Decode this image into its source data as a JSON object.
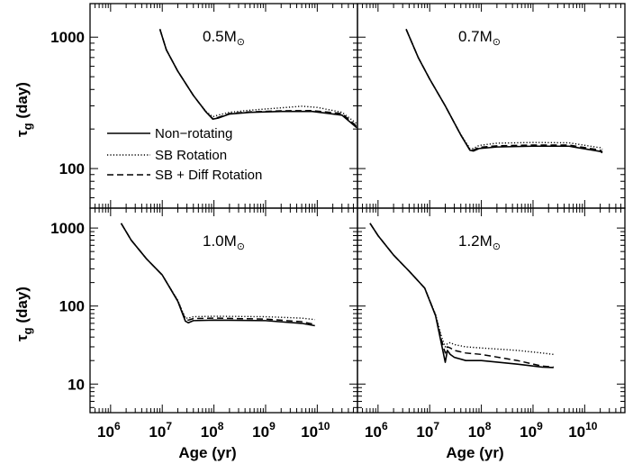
{
  "chart_data": {
    "type": "line",
    "xlabel": "Age (yr)",
    "ylabel_main": "τ",
    "ylabel_sub": "g",
    "ylabel_unit": " (day)",
    "x_scale": "log",
    "y_scale": "log",
    "x_tick_labels": [
      {
        "base": "10",
        "exp": "6",
        "value": 1000000
      },
      {
        "base": "10",
        "exp": "7",
        "value": 10000000
      },
      {
        "base": "10",
        "exp": "8",
        "value": 100000000
      },
      {
        "base": "10",
        "exp": "9",
        "value": 1000000000
      },
      {
        "base": "10",
        "exp": "10",
        "value": 10000000000
      }
    ],
    "legend": {
      "placement": "left, lower-middle of top-left panel",
      "entries": [
        {
          "label": "Non−rotating",
          "style": "solid"
        },
        {
          "label": "SB Rotation",
          "style": "dotted"
        },
        {
          "label": "SB + Diff Rotation",
          "style": "dashed"
        }
      ]
    },
    "panels": [
      {
        "label": "0.5M",
        "label_symbol": "⊙",
        "xlim": [
          400000,
          60000000000
        ],
        "ylim": [
          50,
          1800
        ],
        "y_ticks": [
          {
            "label": "1000",
            "value": 1000
          },
          {
            "label": "100",
            "value": 100
          }
        ],
        "series": [
          {
            "style": "solid",
            "x": [
              9000000,
              12000000,
              20000000,
              40000000,
              70000000,
              95000000,
              120000000,
              200000000,
              500000000,
              2000000000,
              8000000000,
              30000000000,
              58000000000
            ],
            "y": [
              1150,
              800,
              550,
              360,
              270,
              238,
              242,
              260,
              268,
              272,
              272,
              255,
              205
            ]
          },
          {
            "style": "dotted",
            "x": [
              9000000,
              12000000,
              20000000,
              40000000,
              70000000,
              95000000,
              120000000,
              200000000,
              500000000,
              2000000000,
              5000000000,
              10000000000,
              30000000000,
              58000000000
            ],
            "y": [
              1150,
              800,
              550,
              360,
              272,
              248,
              255,
              268,
              278,
              290,
              298,
              292,
              268,
              220
            ]
          },
          {
            "style": "dashed",
            "x": [
              9000000,
              12000000,
              20000000,
              40000000,
              70000000,
              95000000,
              120000000,
              200000000,
              500000000,
              2000000000,
              8000000000,
              30000000000,
              58000000000
            ],
            "y": [
              1150,
              800,
              550,
              360,
              270,
              240,
              245,
              262,
              270,
              275,
              276,
              262,
              210
            ]
          }
        ]
      },
      {
        "label": "0.7M",
        "label_symbol": "⊙",
        "xlim": [
          400000,
          60000000000
        ],
        "ylim": [
          50,
          1800
        ],
        "y_ticks": [],
        "series": [
          {
            "style": "solid",
            "x": [
              3500000,
              6000000,
              10000000,
              20000000,
              40000000,
              60000000,
              70000000,
              90000000,
              200000000,
              1000000000,
              5000000000,
              20000000000,
              22000000000
            ],
            "y": [
              1150,
              700,
              480,
              300,
              180,
              138,
              136,
              142,
              146,
              148,
              148,
              135,
              132
            ]
          },
          {
            "style": "dotted",
            "x": [
              3500000,
              6000000,
              10000000,
              20000000,
              40000000,
              60000000,
              70000000,
              90000000,
              200000000,
              1000000000,
              5000000000,
              20000000000,
              22000000000
            ],
            "y": [
              1150,
              700,
              480,
              300,
              182,
              142,
              142,
              150,
              156,
              158,
              157,
              144,
              140
            ]
          },
          {
            "style": "dashed",
            "x": [
              3500000,
              6000000,
              10000000,
              20000000,
              40000000,
              60000000,
              70000000,
              90000000,
              200000000,
              1000000000,
              5000000000,
              20000000000,
              22000000000
            ],
            "y": [
              1150,
              700,
              480,
              300,
              180,
              139,
              138,
              145,
              149,
              151,
              151,
              138,
              134
            ]
          }
        ]
      },
      {
        "label": "1.0M",
        "label_symbol": "⊙",
        "xlim": [
          400000,
          60000000000
        ],
        "ylim": [
          4.3,
          1800
        ],
        "y_ticks": [
          {
            "label": "1000",
            "value": 1000
          },
          {
            "label": "100",
            "value": 100
          },
          {
            "label": "10",
            "value": 10
          }
        ],
        "series": [
          {
            "style": "solid",
            "x": [
              1600000,
              2500000,
              5000000,
              10000000,
              20000000,
              28000000,
              32000000,
              40000000,
              100000000,
              1000000000,
              5000000000,
              9000000000
            ],
            "y": [
              1150,
              700,
              400,
              250,
              115,
              64,
              61,
              65,
              66,
              65,
              60,
              56
            ]
          },
          {
            "style": "dotted",
            "x": [
              1600000,
              2500000,
              5000000,
              10000000,
              20000000,
              28000000,
              32000000,
              40000000,
              100000000,
              1000000000,
              5000000000,
              9000000000
            ],
            "y": [
              1150,
              700,
              400,
              250,
              118,
              70,
              70,
              73,
              74,
              73,
              70,
              67
            ]
          },
          {
            "style": "dashed",
            "x": [
              1600000,
              2500000,
              5000000,
              10000000,
              20000000,
              28000000,
              32000000,
              40000000,
              100000000,
              1000000000,
              5000000000,
              9000000000
            ],
            "y": [
              1150,
              700,
              400,
              250,
              116,
              67,
              66,
              69,
              70,
              68,
              63,
              58
            ]
          }
        ]
      },
      {
        "label": "1.2M",
        "label_symbol": "⊙",
        "xlim": [
          400000,
          60000000000
        ],
        "ylim": [
          4.3,
          1800
        ],
        "y_ticks": [],
        "series": [
          {
            "style": "solid",
            "x": [
              700000,
              1000000,
              2000000,
              4000000,
              8000000,
              13000000,
              17000000,
              20000000,
              22000000,
              25000000,
              30000000,
              50000000,
              100000000,
              500000000,
              1500000000,
              2500000000
            ],
            "y": [
              1150,
              800,
              450,
              280,
              170,
              75,
              32,
              19,
              27,
              24,
              22,
              20,
              20,
              18,
              16.5,
              16.3
            ]
          },
          {
            "style": "dotted",
            "x": [
              700000,
              1000000,
              2000000,
              4000000,
              8000000,
              13000000,
              17000000,
              20000000,
              22000000,
              25000000,
              30000000,
              50000000,
              100000000,
              500000000,
              1500000000,
              2500000000
            ],
            "y": [
              1150,
              800,
              450,
              280,
              170,
              78,
              40,
              30,
              33,
              34,
              32,
              30,
              29,
              27,
              25,
              24
            ]
          },
          {
            "style": "dashed",
            "x": [
              700000,
              1000000,
              2000000,
              4000000,
              8000000,
              13000000,
              17000000,
              20000000,
              22000000,
              25000000,
              30000000,
              50000000,
              100000000,
              500000000,
              1500000000,
              2500000000
            ],
            "y": [
              1150,
              800,
              450,
              280,
              170,
              76,
              36,
              25,
              30,
              29,
              27,
              25,
              24,
              20,
              17,
              16.5
            ]
          }
        ]
      }
    ]
  }
}
